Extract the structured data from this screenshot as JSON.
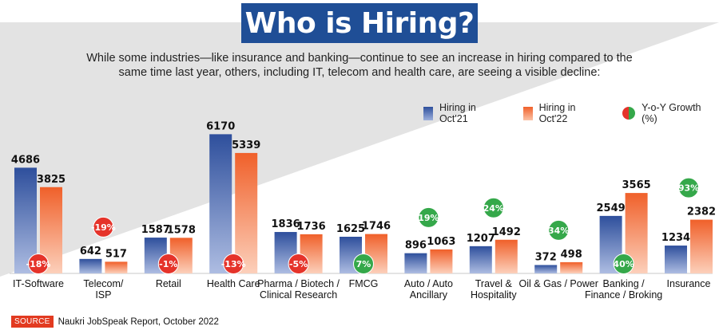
{
  "title": "Who is Hiring?",
  "subtitle": "While some industries—like insurance and banking—continue to see an increase in hiring compared to the same time last year, others, including IT, telecom and health care, are seeing a visible decline:",
  "legend": [
    {
      "label": "Hiring in Oct'21"
    },
    {
      "label": "Hiring in Oct'22"
    },
    {
      "label": "Y-o-Y Growth (%)"
    }
  ],
  "colors": {
    "oct21": "#2e4f9c",
    "oct22": "#f0602a",
    "growth_negative": "#e5332a",
    "growth_positive": "#35a84a",
    "title_bg": "#1f4e96",
    "panel": "#e3e3e3"
  },
  "source": {
    "tag": "SOURCE",
    "text": "Naukri JobSpeak Report, October 2022"
  },
  "chart_data": {
    "type": "bar",
    "title": "Who is Hiring?",
    "categories": [
      "IT-Software",
      "Telecom/\nISP",
      "Retail",
      "Health Care",
      "Pharma / Biotech /\nClinical Research",
      "FMCG",
      "Auto / Auto\nAncillary",
      "Travel &\nHospitality",
      "Oil & Gas / Power",
      "Banking /\nFinance / Broking",
      "Insurance"
    ],
    "series": [
      {
        "name": "Hiring in Oct'21",
        "values": [
          4686,
          642,
          1587,
          6170,
          1836,
          1625,
          896,
          1207,
          372,
          2549,
          1234
        ]
      },
      {
        "name": "Hiring in Oct'22",
        "values": [
          3825,
          517,
          1578,
          5339,
          1736,
          1746,
          1063,
          1492,
          498,
          3565,
          2382
        ]
      }
    ],
    "growth": {
      "name": "Y-o-Y Growth (%)",
      "values": [
        -18,
        -19,
        -1,
        -13,
        -5,
        7,
        19,
        24,
        34,
        40,
        93
      ],
      "labels": [
        "-18%",
        "-19%",
        "-1%",
        "-13%",
        "-5%",
        "7%",
        "19%",
        "24%",
        "34%",
        "40%",
        "93%"
      ]
    },
    "ylim": [
      0,
      6500
    ],
    "grid": false,
    "legend_position": "top-right"
  }
}
